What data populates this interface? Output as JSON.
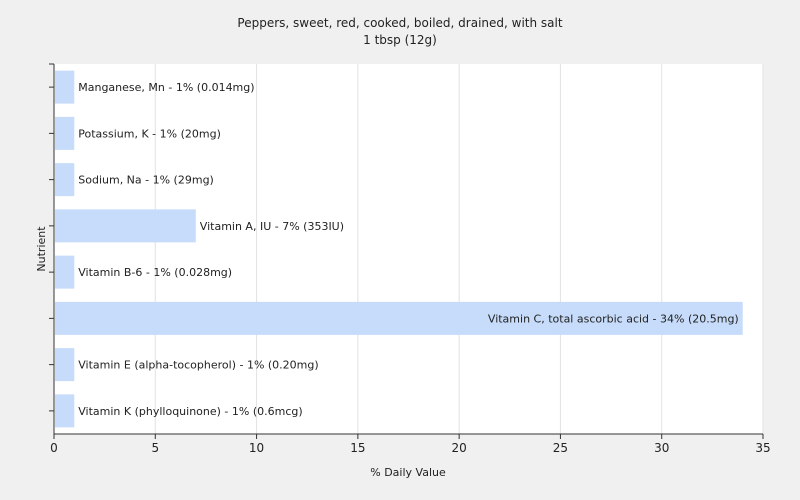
{
  "chart_data": {
    "type": "bar",
    "orientation": "horizontal",
    "title": "Peppers, sweet, red, cooked, boiled, drained, with salt",
    "subtitle": "1 tbsp (12g)",
    "xlabel": "% Daily Value",
    "ylabel": "Nutrient",
    "xlim": [
      0,
      35
    ],
    "xticks": [
      0,
      5,
      10,
      15,
      20,
      25,
      30,
      35
    ],
    "grid": "vertical",
    "bar_color": "#c6dcfa",
    "bars": [
      {
        "label": "Manganese, Mn - 1% (0.014mg)",
        "value": 1
      },
      {
        "label": "Potassium, K - 1% (20mg)",
        "value": 1
      },
      {
        "label": "Sodium, Na - 1% (29mg)",
        "value": 1
      },
      {
        "label": "Vitamin A, IU - 7% (353IU)",
        "value": 7
      },
      {
        "label": "Vitamin B-6 - 1% (0.028mg)",
        "value": 1
      },
      {
        "label": "Vitamin C, total ascorbic acid - 34% (20.5mg)",
        "value": 34
      },
      {
        "label": "Vitamin E (alpha-tocopherol) - 1% (0.20mg)",
        "value": 1
      },
      {
        "label": "Vitamin K (phylloquinone) - 1% (0.6mcg)",
        "value": 1
      }
    ]
  }
}
